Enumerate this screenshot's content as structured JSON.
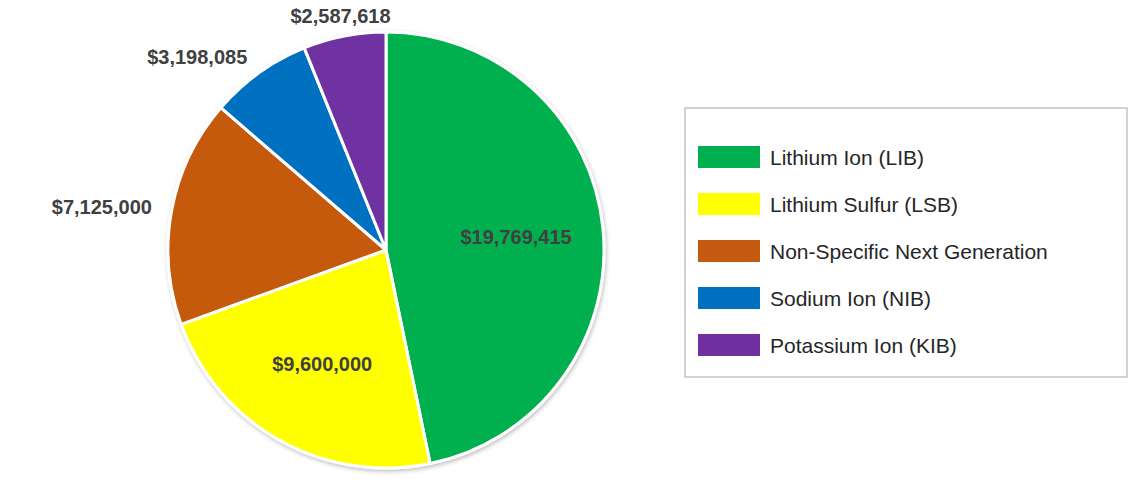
{
  "chart_data": {
    "type": "pie",
    "categories": [
      "Lithium Ion (LIB)",
      "Lithium Sulfur (LSB)",
      "Non-Specific Next Generation",
      "Sodium Ion (NIB)",
      "Potassium Ion (KIB)"
    ],
    "values": [
      19769415,
      9600000,
      7125000,
      3198085,
      2587618
    ],
    "value_labels": [
      "$19,769,415",
      "$9,600,000",
      "$7,125,000",
      "$3,198,085",
      "$2,587,618"
    ],
    "colors": [
      "#00b050",
      "#ffff00",
      "#c55a11",
      "#0070c0",
      "#7030a0"
    ],
    "data_labels": true,
    "legend": "right"
  }
}
